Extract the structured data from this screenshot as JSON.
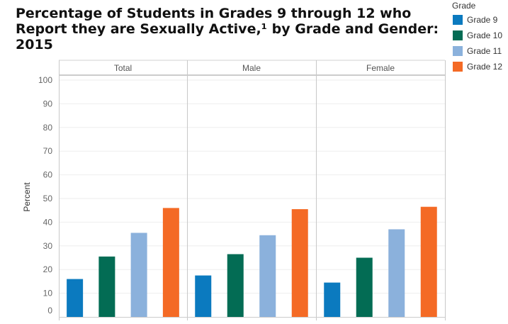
{
  "colors": {
    "Grade 9": "#0B7ABF",
    "Grade 10": "#036C54",
    "Grade 11": "#8BB1DC",
    "Grade 12": "#F46A25"
  },
  "chart_data": {
    "type": "bar",
    "title": "Percentage of Students in Grades 9 through 12 who Report they are Sexually Active,¹ by Grade and Gender: 2015",
    "ylabel": "Percent",
    "ylim": [
      0,
      100
    ],
    "yticks": [
      0,
      10,
      20,
      30,
      40,
      50,
      60,
      70,
      80,
      90,
      100
    ],
    "grid": true,
    "legend": {
      "title": "Grade",
      "placement": "top-right",
      "entries": [
        "Grade 9",
        "Grade 10",
        "Grade 11",
        "Grade 12"
      ]
    },
    "panels": [
      "Total",
      "Male",
      "Female"
    ],
    "series": [
      {
        "name": "Grade 9",
        "values": [
          16,
          17.5,
          14.5
        ]
      },
      {
        "name": "Grade 10",
        "values": [
          25.5,
          26.5,
          25
        ]
      },
      {
        "name": "Grade 11",
        "values": [
          35.5,
          34.5,
          37
        ]
      },
      {
        "name": "Grade 12",
        "values": [
          46,
          45.5,
          46.5
        ]
      }
    ]
  }
}
